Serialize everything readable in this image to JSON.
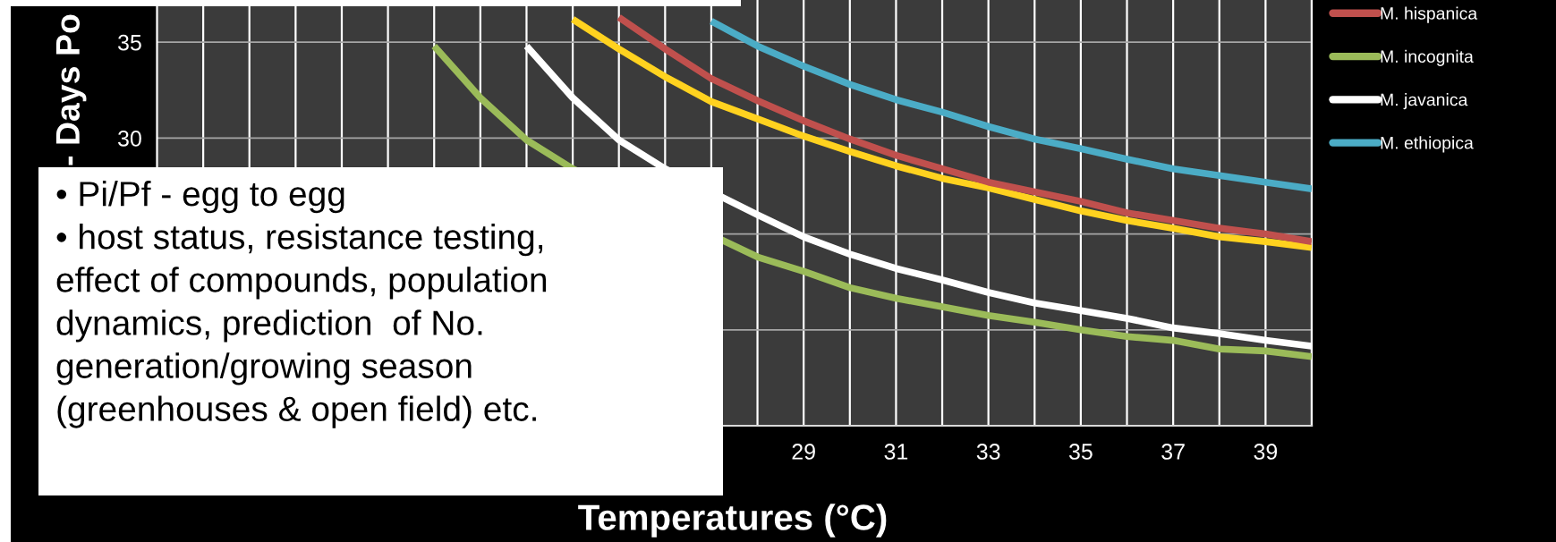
{
  "chart_data": {
    "type": "line",
    "xlabel": "Temperatures (°C)",
    "ylabel": "- Days Po",
    "xlim": [
      15,
      40
    ],
    "ylim": [
      15,
      37.2
    ],
    "xticks": [
      {
        "value": 16,
        "label": null
      },
      {
        "value": 17,
        "label": null
      },
      {
        "value": 18,
        "label": null
      },
      {
        "value": 19,
        "label": null
      },
      {
        "value": 20,
        "label": null
      },
      {
        "value": 21,
        "label": null
      },
      {
        "value": 22,
        "label": null
      },
      {
        "value": 23,
        "label": null
      },
      {
        "value": 24,
        "label": null
      },
      {
        "value": 25,
        "label": null
      },
      {
        "value": 26,
        "label": null
      },
      {
        "value": 27,
        "label": null
      },
      {
        "value": 28,
        "label": null
      },
      29,
      {
        "value": 30,
        "label": null
      },
      31,
      {
        "value": 32,
        "label": null
      },
      33,
      {
        "value": 34,
        "label": null
      },
      35,
      {
        "value": 36,
        "label": null
      },
      37,
      {
        "value": 38,
        "label": null
      },
      39,
      {
        "value": 40,
        "label": null
      }
    ],
    "yticks": [
      {
        "value": 20,
        "label": null
      },
      {
        "value": 25,
        "label": null
      },
      30,
      35
    ],
    "grid": true,
    "legend": "right",
    "line_style": "solid",
    "annotations": [
      "• Pi/Pf - egg to egg\n• host status, resistance testing,\neffect of compounds, population\ndynamics, prediction  of No.\ngeneration/growing season\n(greenhouses & open field) etc."
    ],
    "series": [
      {
        "color": "#ffd21f",
        "x": [
          24,
          25,
          26,
          27,
          28,
          29,
          30,
          31,
          32,
          33,
          34,
          35,
          36,
          37,
          38,
          39,
          40
        ],
        "values": [
          36.2,
          34.65,
          33.2,
          31.9,
          31.0,
          30.1,
          29.3,
          28.55,
          27.9,
          27.4,
          26.8,
          26.2,
          25.7,
          25.3,
          24.85,
          24.6,
          24.3
        ]
      },
      {
        "name": "M. hispanica",
        "color": "#c0504d",
        "x": [
          25,
          26,
          27,
          28,
          29,
          30,
          31,
          32,
          33,
          34,
          35,
          36,
          37,
          38,
          39,
          40
        ],
        "values": [
          36.3,
          34.65,
          33.1,
          31.95,
          30.9,
          29.95,
          29.1,
          28.4,
          27.7,
          27.2,
          26.7,
          26.1,
          25.7,
          25.3,
          25.0,
          24.6
        ]
      },
      {
        "name": "M. incognita",
        "color": "#9bbb59",
        "x": [
          21,
          22,
          23,
          24,
          28,
          29,
          30,
          31,
          32,
          33,
          34,
          35,
          36,
          37,
          38,
          39,
          40
        ],
        "values": [
          34.8,
          32.1,
          29.9,
          28.4,
          23.8,
          23.05,
          22.2,
          21.65,
          21.2,
          20.75,
          20.4,
          20.0,
          19.65,
          19.45,
          19.0,
          18.9,
          18.6
        ]
      },
      {
        "name": "M. javanica",
        "color": "#ffffff",
        "x": [
          23,
          24,
          25,
          26,
          28,
          29,
          30,
          31,
          32,
          33,
          34,
          35,
          36,
          37,
          38,
          39,
          40
        ],
        "values": [
          34.8,
          32.1,
          29.9,
          28.4,
          26.0,
          24.85,
          23.95,
          23.2,
          22.6,
          21.95,
          21.4,
          21.0,
          20.6,
          20.1,
          19.8,
          19.45,
          19.15
        ]
      },
      {
        "name": "M. ethiopica",
        "color": "#4bacc6",
        "x": [
          27,
          28,
          29,
          30,
          31,
          32,
          33,
          34,
          35,
          36,
          37,
          38,
          39,
          40
        ],
        "values": [
          36.1,
          34.8,
          33.75,
          32.8,
          32.0,
          31.35,
          30.6,
          29.95,
          29.45,
          28.9,
          28.4,
          28.05,
          27.7,
          27.35
        ]
      }
    ]
  }
}
